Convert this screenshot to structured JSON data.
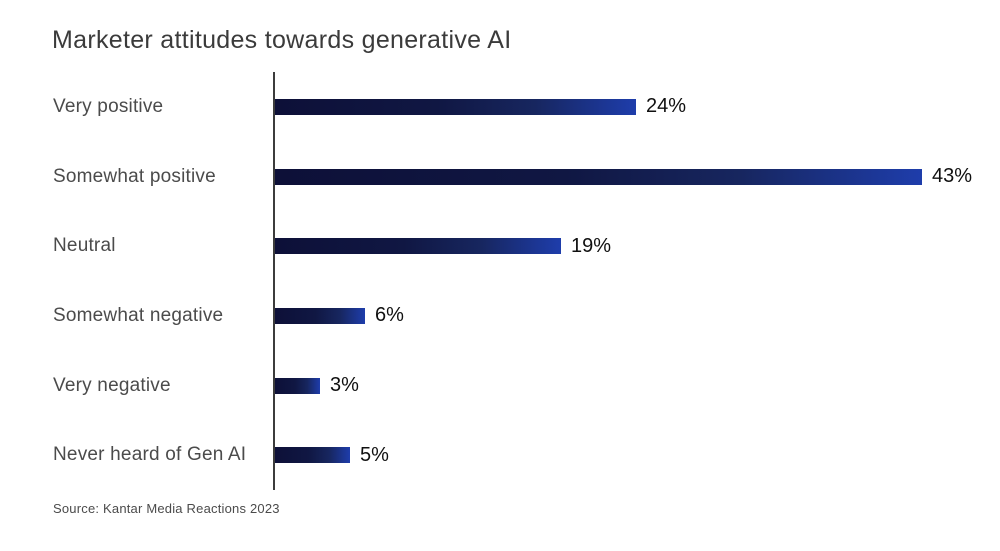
{
  "title": "Marketer attitudes towards generative AI",
  "source": "Source: Kantar Media Reactions 2023",
  "colors": {
    "bar_gradient_start": "#0d1038",
    "bar_gradient_end": "#1e3dab",
    "title_text": "#3b3b3b",
    "category_text": "#4b4b4b",
    "value_text": "#101010",
    "axis_line": "#3c3c3c",
    "background": "#ffffff"
  },
  "chart_data": {
    "type": "bar",
    "orientation": "horizontal",
    "title": "Marketer attitudes towards generative AI",
    "categories": [
      "Very positive",
      "Somewhat positive",
      "Neutral",
      "Somewhat negative",
      "Very negative",
      "Never heard of Gen AI"
    ],
    "values": [
      24,
      43,
      19,
      6,
      3,
      5
    ],
    "value_labels": [
      "24%",
      "43%",
      "19%",
      "6%",
      "3%",
      "5%"
    ],
    "unit": "%",
    "xlabel": "",
    "ylabel": "",
    "xlim": [
      0,
      45
    ],
    "grid": false,
    "legend": false,
    "source": "Source: Kantar Media Reactions 2023"
  }
}
